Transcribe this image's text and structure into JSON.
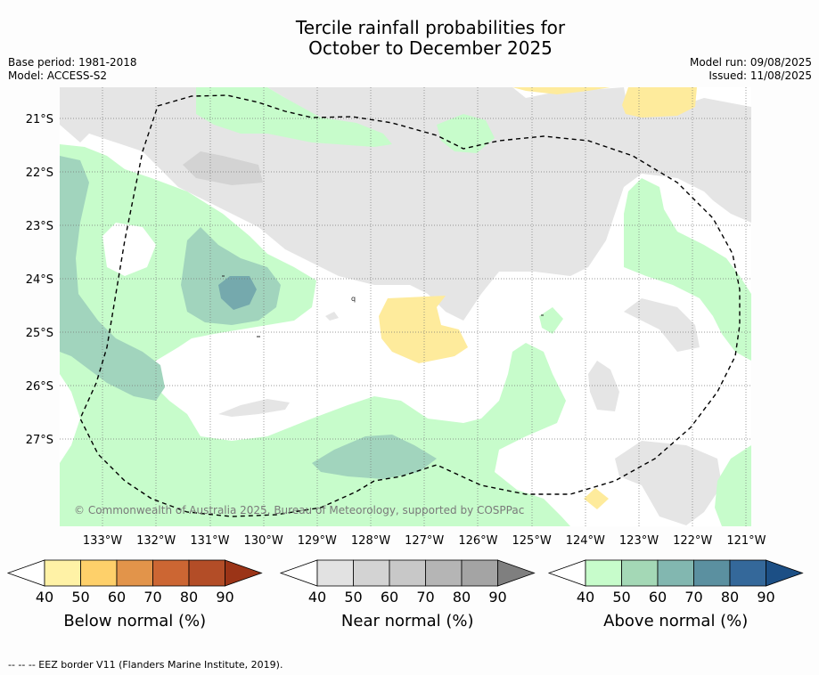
{
  "title": {
    "line1": "Tercile rainfall probabilities for",
    "line2": "October to December 2025"
  },
  "meta": {
    "base_period": "Base period: 1981-2018",
    "model": "Model: ACCESS-S2",
    "model_run": "Model run: 09/08/2025",
    "issued": "Issued: 11/08/2025"
  },
  "map": {
    "copyright": "© Commonwealth of Australia 2025, Bureau of Meteorology, supported by COSPPac",
    "lat_labels": [
      "21°S",
      "22°S",
      "23°S",
      "24°S",
      "25°S",
      "26°S",
      "27°S"
    ],
    "lon_labels": [
      "133°W",
      "132°W",
      "131°W",
      "130°W",
      "129°W",
      "128°W",
      "127°W",
      "126°W",
      "125°W",
      "124°W",
      "123°W",
      "122°W",
      "121°W"
    ],
    "colors": {
      "ocean": "#ffffff",
      "near_normal_40": "#e5e5e5",
      "near_normal_50": "#d3d3d3",
      "above_40": "#c7fccb",
      "above_50": "#a1d4bd",
      "above_60": "#84b9b3",
      "below_40": "#feeb9c"
    },
    "eez_border": "dashed"
  },
  "colorbars": [
    {
      "label": "Below normal (%)",
      "ticks": [
        "40",
        "50",
        "60",
        "70",
        "80",
        "90"
      ],
      "colors": [
        "#fff2a6",
        "#fed06a",
        "#e2944a",
        "#cc6633",
        "#b34d27",
        "#9b3417"
      ]
    },
    {
      "label": "Near normal (%)",
      "ticks": [
        "40",
        "50",
        "60",
        "70",
        "80",
        "90"
      ],
      "colors": [
        "#e2e2e2",
        "#d3d3d3",
        "#c8c8c8",
        "#b5b5b5",
        "#a4a4a4",
        "#7f7f7f"
      ]
    },
    {
      "label": "Above normal (%)",
      "ticks": [
        "40",
        "50",
        "60",
        "70",
        "80",
        "90"
      ],
      "colors": [
        "#c7fccb",
        "#a4d8b6",
        "#82b7b0",
        "#5b90a0",
        "#34689a",
        "#1c4f85"
      ]
    }
  ],
  "footer": "--  --  -- EEZ border V11 (Flanders Marine Institute, 2019)."
}
